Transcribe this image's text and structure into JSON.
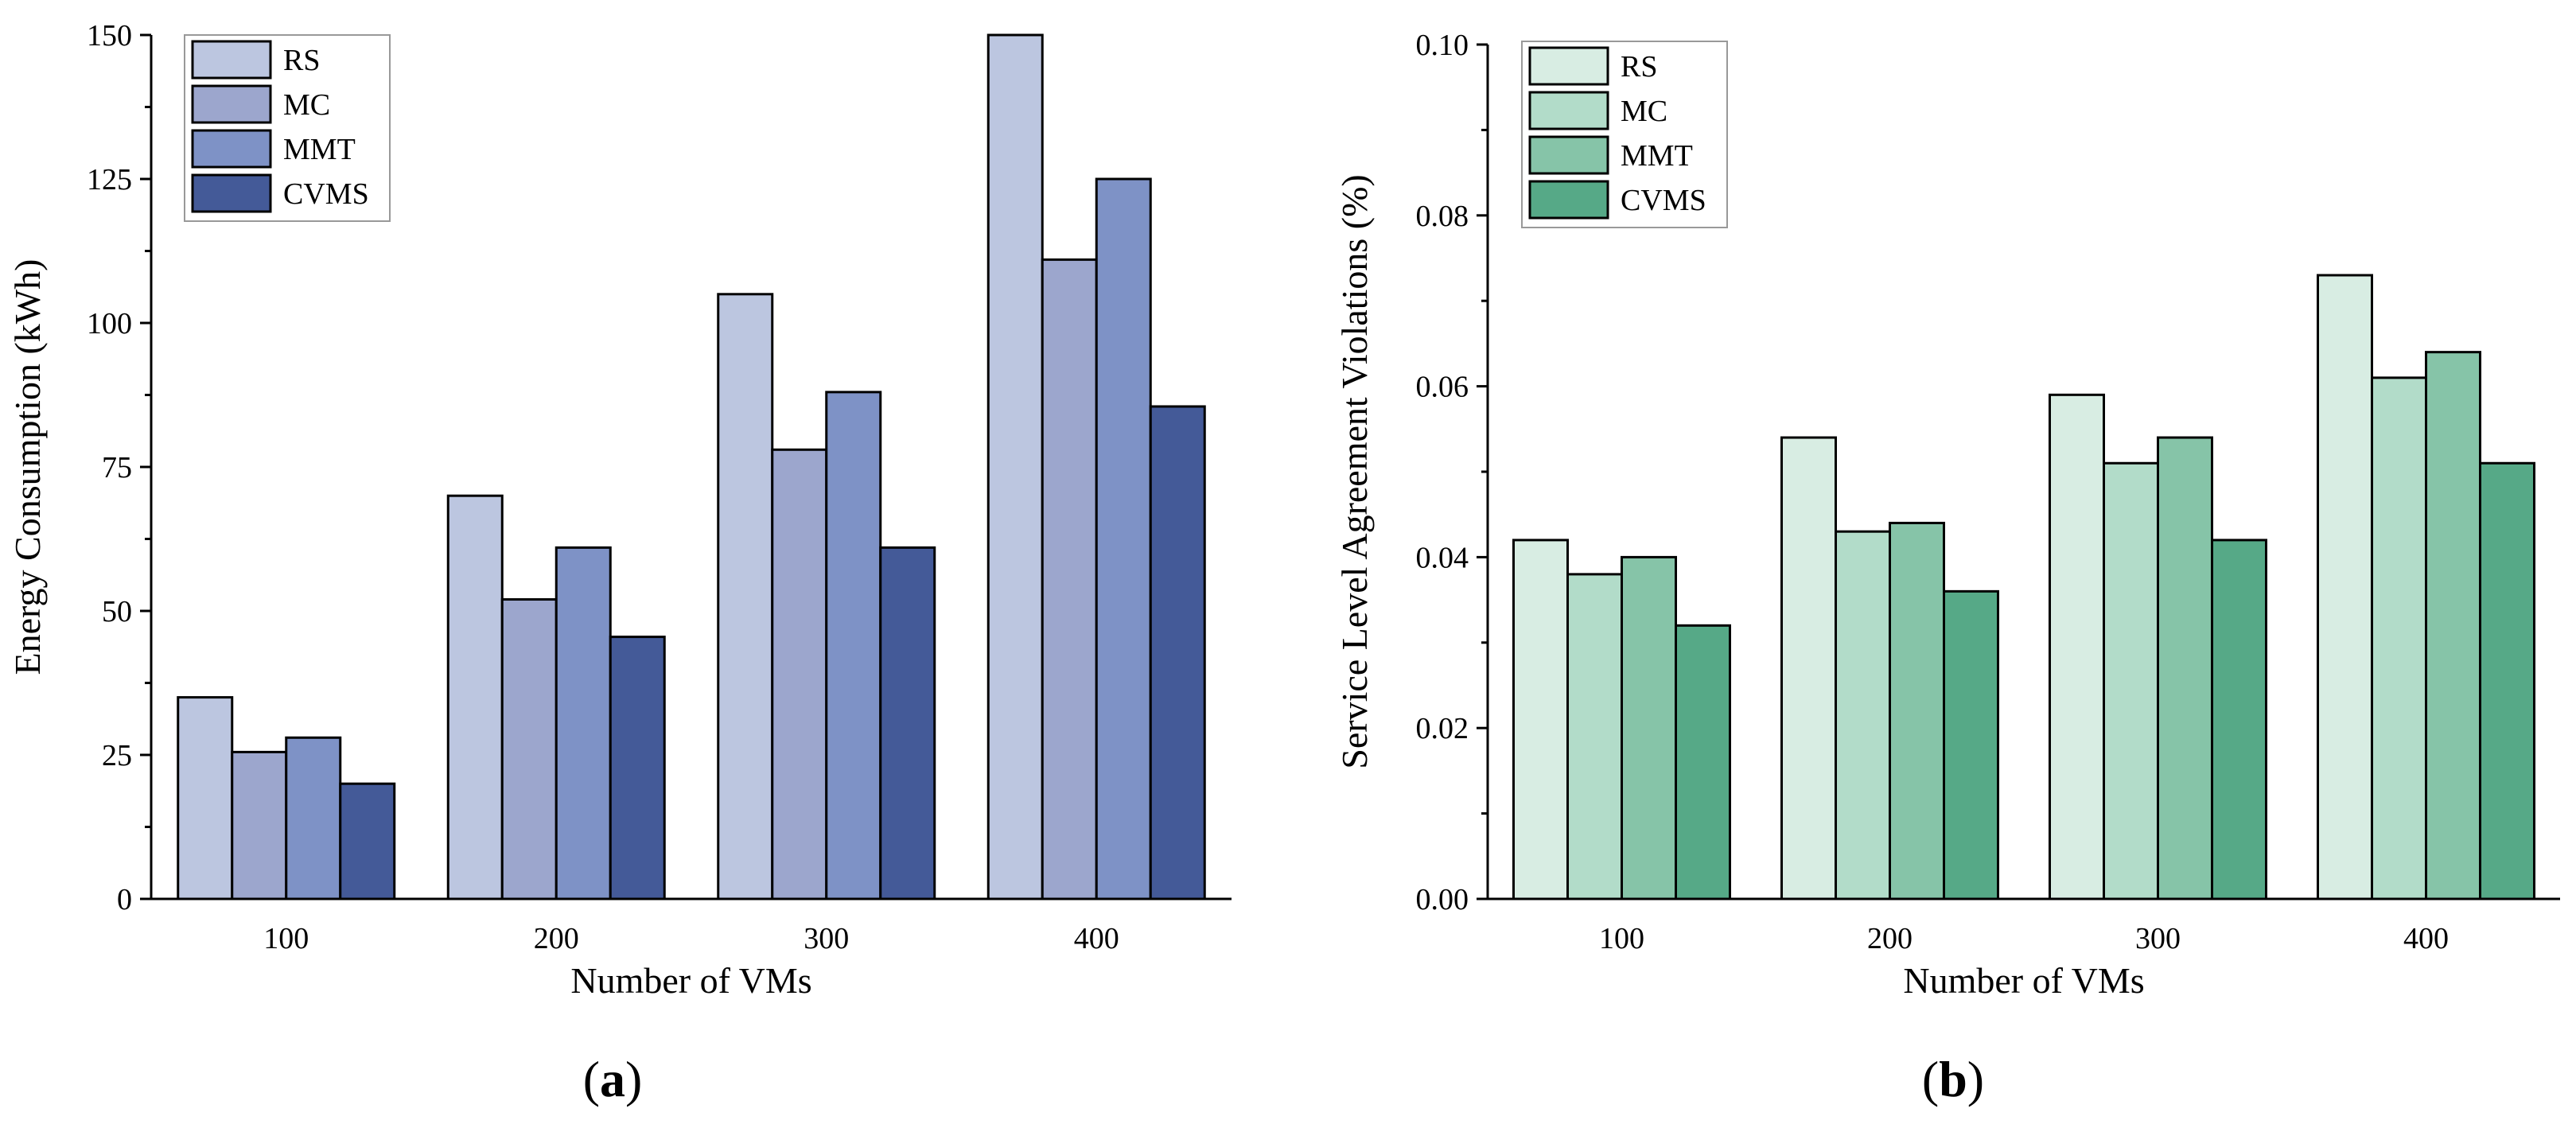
{
  "chart_data": [
    {
      "type": "bar",
      "panel_label": "a",
      "title": "",
      "xlabel": "Number of VMs",
      "ylabel": "Energy Consumption (kWh)",
      "categories": [
        "100",
        "200",
        "300",
        "400"
      ],
      "ylim": [
        0,
        150
      ],
      "yticks": [
        "0",
        "25",
        "50",
        "75",
        "100",
        "125",
        "150"
      ],
      "ytick_values": [
        0,
        25,
        50,
        75,
        100,
        125,
        150
      ],
      "legend_position": "top-left",
      "series": [
        {
          "name": "RS",
          "color": "#BCC6E0",
          "values": [
            35,
            70,
            105,
            150
          ]
        },
        {
          "name": "MC",
          "color": "#9CA6CD",
          "values": [
            25.5,
            52,
            78,
            111
          ]
        },
        {
          "name": "MMT",
          "color": "#7E92C6",
          "values": [
            28,
            61,
            88,
            125
          ]
        },
        {
          "name": "CVMS",
          "color": "#445A98",
          "values": [
            20,
            45.5,
            61,
            85.5
          ]
        }
      ]
    },
    {
      "type": "bar",
      "panel_label": "b",
      "title": "",
      "xlabel": "Number of VMs",
      "ylabel": "Service Level Agreement Violations (%)",
      "categories": [
        "100",
        "200",
        "300",
        "400"
      ],
      "ylim": [
        0,
        0.1
      ],
      "yticks": [
        "0.00",
        "0.02",
        "0.04",
        "0.06",
        "0.08",
        "0.10"
      ],
      "ytick_values": [
        0,
        0.02,
        0.04,
        0.06,
        0.08,
        0.1
      ],
      "legend_position": "top-left",
      "series": [
        {
          "name": "RS",
          "color": "#D8EDE3",
          "values": [
            0.042,
            0.054,
            0.059,
            0.073
          ]
        },
        {
          "name": "MC",
          "color": "#B2DCC9",
          "values": [
            0.038,
            0.043,
            0.051,
            0.061
          ]
        },
        {
          "name": "MMT",
          "color": "#86C4A8",
          "values": [
            0.04,
            0.044,
            0.054,
            0.064
          ]
        },
        {
          "name": "CVMS",
          "color": "#56A987",
          "values": [
            0.032,
            0.036,
            0.042,
            0.051
          ]
        }
      ]
    }
  ]
}
